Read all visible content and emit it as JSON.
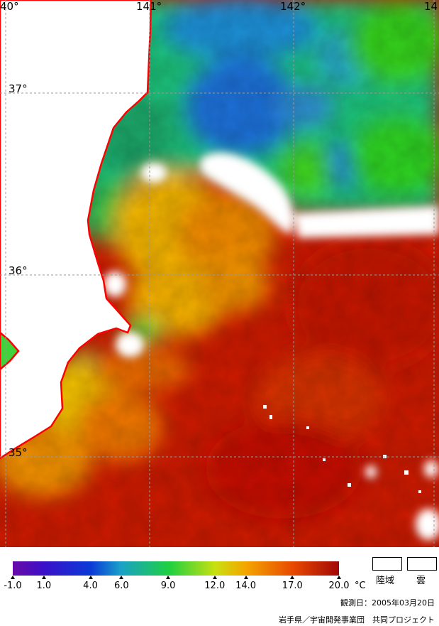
{
  "map": {
    "lon_labels": [
      "40°",
      "141°",
      "142°",
      "14"
    ],
    "lat_labels": [
      "37°",
      "36°",
      "35°"
    ],
    "colors": {
      "land": "#ffffff",
      "coastline": "#ff0000",
      "grid": "#9a9a9a",
      "cloud": "#ffffff"
    }
  },
  "colorbar": {
    "tick_labels": [
      "-1.0",
      "1.0",
      "4.0",
      "6.0",
      "9.0",
      "12.0",
      "14.0",
      "17.0",
      "20.0"
    ],
    "tick_values": [
      -1,
      1,
      4,
      6,
      9,
      12,
      14,
      17,
      20
    ],
    "unit": "°C",
    "range": [
      -1,
      20
    ]
  },
  "legend": {
    "land_label": "陸域",
    "cloud_label": "雲"
  },
  "footer": {
    "observation_date": "観測日：2005年03月20日",
    "credit": "岩手県／宇宙開発事業団　共同プロジェクト"
  }
}
